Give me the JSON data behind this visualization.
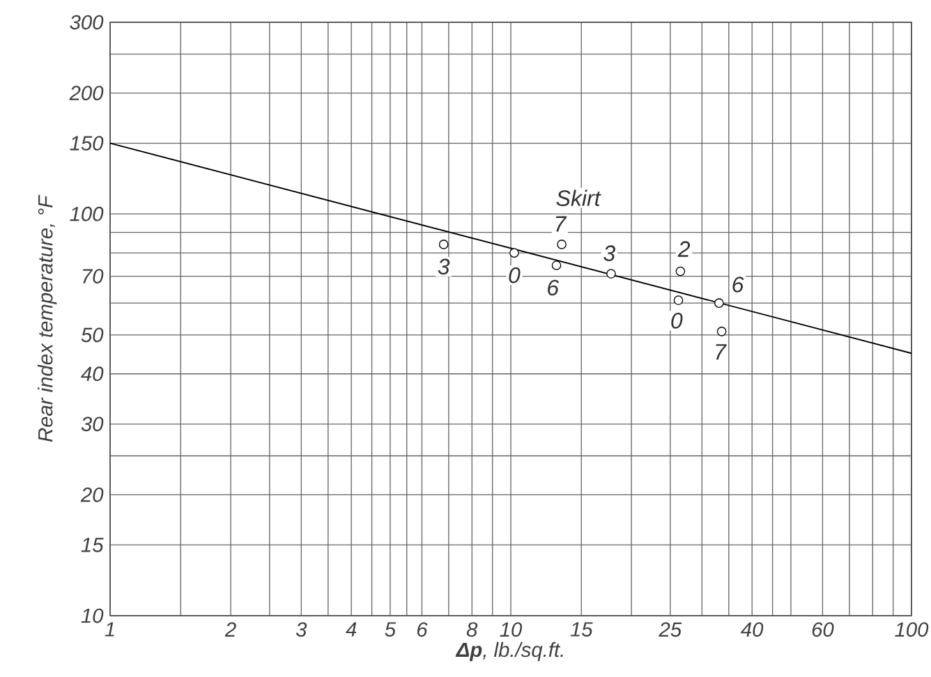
{
  "chart_data": {
    "type": "scatter",
    "xlabel": "**Δp**, lb./sq.ft.",
    "ylabel": "Rear index temperature, °F",
    "xlim": [
      1,
      100
    ],
    "ylim": [
      10,
      300
    ],
    "xticks": [
      1,
      {
        "value": 1.5,
        "label": null
      },
      2,
      {
        "value": 2.5,
        "label": null
      },
      3,
      {
        "value": 3.5,
        "label": null
      },
      4,
      {
        "value": 4.5,
        "label": null
      },
      5,
      {
        "value": 5.5,
        "label": null
      },
      6,
      {
        "value": 7,
        "label": null
      },
      8,
      {
        "value": 9,
        "label": null
      },
      10,
      15,
      {
        "value": 20,
        "label": null
      },
      25,
      {
        "value": 30,
        "label": null
      },
      {
        "value": 35,
        "label": null
      },
      40,
      {
        "value": 45,
        "label": null
      },
      {
        "value": 50,
        "label": null
      },
      60,
      {
        "value": 70,
        "label": null
      },
      {
        "value": 80,
        "label": null
      },
      {
        "value": 90,
        "label": null
      },
      100
    ],
    "yticks": [
      10,
      15,
      20,
      {
        "value": 25,
        "label": null
      },
      30,
      40,
      50,
      {
        "value": 60,
        "label": null
      },
      70,
      {
        "value": 80,
        "label": null
      },
      {
        "value": 90,
        "label": null
      },
      100,
      150,
      200,
      {
        "value": 250,
        "label": null
      },
      300
    ],
    "log": "xy",
    "grid": true,
    "series": [
      {
        "type": "line",
        "line_style": "solid",
        "marker": "none",
        "color": "#000000",
        "x": [
          1,
          100
        ],
        "values": [
          150,
          45
        ]
      },
      {
        "marker": "circle",
        "color": "#000000",
        "x": [
          6.8,
          10.2,
          13.4,
          13.0,
          17.8,
          26.5,
          26.2,
          33.1,
          33.6
        ],
        "values": [
          84,
          80,
          84,
          74.5,
          71,
          72,
          61,
          60,
          51
        ]
      }
    ],
    "annotations": [
      "Skirt",
      {
        "text": "3",
        "x": 6.8,
        "y": 84
      },
      {
        "text": "0",
        "x": 10.2,
        "y": 80
      },
      {
        "text": "7",
        "x": 13.4,
        "y": 84
      },
      {
        "text": "6",
        "x": 13.0,
        "y": 74.5
      },
      {
        "text": "3",
        "x": 17.8,
        "y": 71
      },
      {
        "text": "2",
        "x": 26.5,
        "y": 72
      },
      {
        "text": "0",
        "x": 26.2,
        "y": 61
      },
      {
        "text": "6",
        "x": 33.1,
        "y": 60
      },
      {
        "text": "7",
        "x": 33.6,
        "y": 51
      }
    ]
  }
}
